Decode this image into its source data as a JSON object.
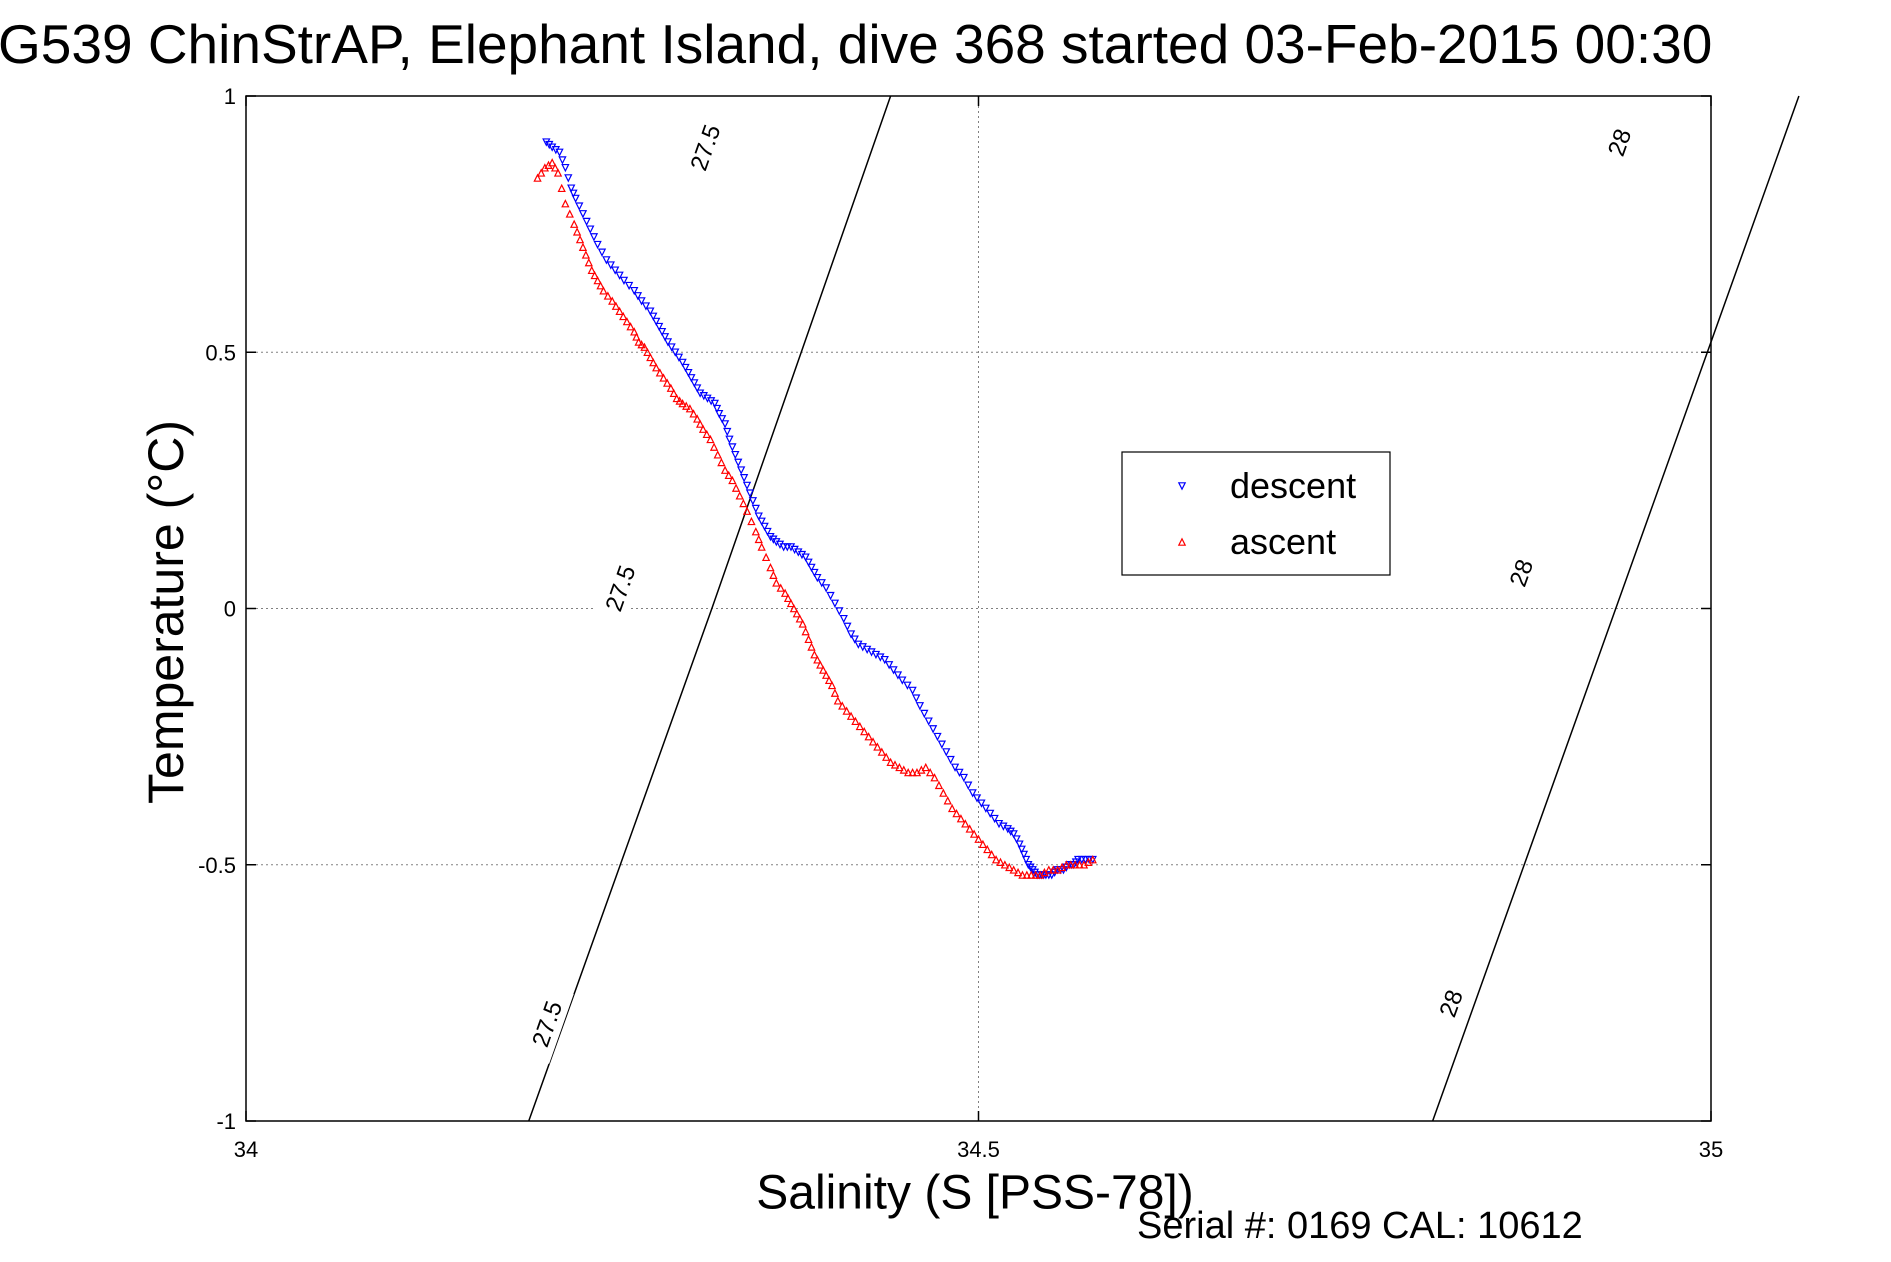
{
  "chart_data": {
    "type": "scatter",
    "title": "G539 ChinStrAP, Elephant Island, dive 368 started 03-Feb-2015 00:30",
    "xlabel": "Salinity (S [PSS-78])",
    "ylabel": "Temperature (°C)",
    "footer": "Serial #: 0169 CAL: 10612",
    "xlim": [
      34,
      35
    ],
    "ylim": [
      -1,
      1
    ],
    "xticks": [
      34,
      34.5,
      35
    ],
    "yticks": [
      -1,
      -0.5,
      0,
      0.5,
      1
    ],
    "xtick_labels": [
      "34",
      "34.5",
      "35"
    ],
    "ytick_labels": [
      "-1",
      "-0.5",
      "0",
      "0.5",
      "1"
    ],
    "grid": true,
    "legend": {
      "placement": "center-right",
      "entries": [
        "descent",
        "ascent"
      ]
    },
    "density_contours": [
      {
        "label": "27.5",
        "points": [
          [
            34.193,
            -1.0
          ],
          [
            34.318,
            0.0
          ],
          [
            34.44,
            1.0
          ]
        ],
        "label_positions": [
          [
            34.205,
            -0.81
          ],
          [
            34.255,
            0.04
          ],
          [
            34.313,
            0.9
          ]
        ]
      },
      {
        "label": "28",
        "points": [
          [
            34.81,
            -1.0
          ],
          [
            34.935,
            0.0
          ],
          [
            35.06,
            1.0
          ]
        ],
        "label_positions": [
          [
            34.822,
            -0.77
          ],
          [
            34.87,
            0.07
          ],
          [
            34.937,
            0.91
          ]
        ]
      }
    ],
    "series": [
      {
        "name": "descent",
        "color": "#0000ff",
        "marker": "triangle-down",
        "x": [
          34.205,
          34.209,
          34.214,
          34.218,
          34.222,
          34.225,
          34.23,
          34.235,
          34.24,
          34.246,
          34.252,
          34.258,
          34.265,
          34.27,
          34.276,
          34.28,
          34.284,
          34.288,
          34.293,
          34.298,
          34.302,
          34.306,
          34.31,
          34.315,
          34.32,
          34.323,
          34.327,
          34.33,
          34.334,
          34.338,
          34.342,
          34.346,
          34.35,
          34.354,
          34.358,
          34.362,
          34.367,
          34.372,
          34.377,
          34.382,
          34.386,
          34.39,
          34.396,
          34.402,
          34.408,
          34.413,
          34.418,
          34.424,
          34.43,
          34.436,
          34.442,
          34.448,
          34.455,
          34.46,
          34.466,
          34.472,
          34.478,
          34.484,
          34.49,
          34.496,
          34.502,
          34.508,
          34.514,
          34.52,
          34.524,
          34.528,
          34.531,
          34.534,
          34.537,
          34.54,
          34.543,
          34.546,
          34.55,
          34.554,
          34.558,
          34.562,
          34.565,
          34.568,
          34.573,
          34.578
        ],
        "y": [
          0.91,
          0.9,
          0.89,
          0.86,
          0.82,
          0.8,
          0.77,
          0.74,
          0.71,
          0.68,
          0.66,
          0.64,
          0.62,
          0.6,
          0.58,
          0.56,
          0.54,
          0.52,
          0.5,
          0.48,
          0.46,
          0.44,
          0.42,
          0.41,
          0.4,
          0.38,
          0.36,
          0.33,
          0.3,
          0.27,
          0.24,
          0.21,
          0.18,
          0.16,
          0.14,
          0.13,
          0.12,
          0.12,
          0.11,
          0.1,
          0.08,
          0.06,
          0.04,
          0.01,
          -0.02,
          -0.05,
          -0.07,
          -0.08,
          -0.09,
          -0.1,
          -0.12,
          -0.14,
          -0.16,
          -0.19,
          -0.22,
          -0.25,
          -0.28,
          -0.31,
          -0.33,
          -0.36,
          -0.38,
          -0.4,
          -0.42,
          -0.43,
          -0.44,
          -0.46,
          -0.48,
          -0.5,
          -0.51,
          -0.52,
          -0.52,
          -0.52,
          -0.52,
          -0.51,
          -0.51,
          -0.5,
          -0.5,
          -0.49,
          -0.49,
          -0.49
        ]
      },
      {
        "name": "ascent",
        "color": "#ff0000",
        "marker": "triangle-up",
        "x": [
          34.199,
          34.204,
          34.209,
          34.213,
          34.218,
          34.224,
          34.228,
          34.232,
          34.236,
          34.24,
          34.244,
          34.25,
          34.255,
          34.26,
          34.265,
          34.268,
          34.272,
          34.276,
          34.28,
          34.285,
          34.29,
          34.294,
          34.298,
          34.303,
          34.308,
          34.312,
          34.317,
          34.322,
          34.327,
          34.332,
          34.337,
          34.342,
          34.348,
          34.352,
          34.358,
          34.362,
          34.368,
          34.372,
          34.376,
          34.38,
          34.384,
          34.388,
          34.392,
          34.396,
          34.4,
          34.404,
          34.41,
          34.416,
          34.422,
          34.428,
          34.434,
          34.44,
          34.446,
          34.452,
          34.458,
          34.464,
          34.47,
          34.476,
          34.482,
          34.488,
          34.494,
          34.5,
          34.506,
          34.512,
          34.518,
          34.524,
          34.53,
          34.536,
          34.542,
          34.548,
          34.554,
          34.56,
          34.566,
          34.572,
          34.578
        ],
        "y": [
          0.84,
          0.86,
          0.87,
          0.85,
          0.79,
          0.75,
          0.72,
          0.69,
          0.66,
          0.64,
          0.62,
          0.6,
          0.58,
          0.56,
          0.54,
          0.52,
          0.51,
          0.49,
          0.47,
          0.45,
          0.43,
          0.41,
          0.4,
          0.39,
          0.37,
          0.35,
          0.33,
          0.3,
          0.27,
          0.25,
          0.22,
          0.19,
          0.15,
          0.12,
          0.08,
          0.05,
          0.03,
          0.01,
          -0.01,
          -0.03,
          -0.06,
          -0.09,
          -0.11,
          -0.13,
          -0.15,
          -0.18,
          -0.2,
          -0.22,
          -0.24,
          -0.26,
          -0.28,
          -0.3,
          -0.31,
          -0.32,
          -0.32,
          -0.31,
          -0.33,
          -0.36,
          -0.39,
          -0.41,
          -0.43,
          -0.45,
          -0.47,
          -0.49,
          -0.5,
          -0.51,
          -0.52,
          -0.52,
          -0.52,
          -0.51,
          -0.51,
          -0.5,
          -0.5,
          -0.5,
          -0.49
        ]
      }
    ]
  }
}
